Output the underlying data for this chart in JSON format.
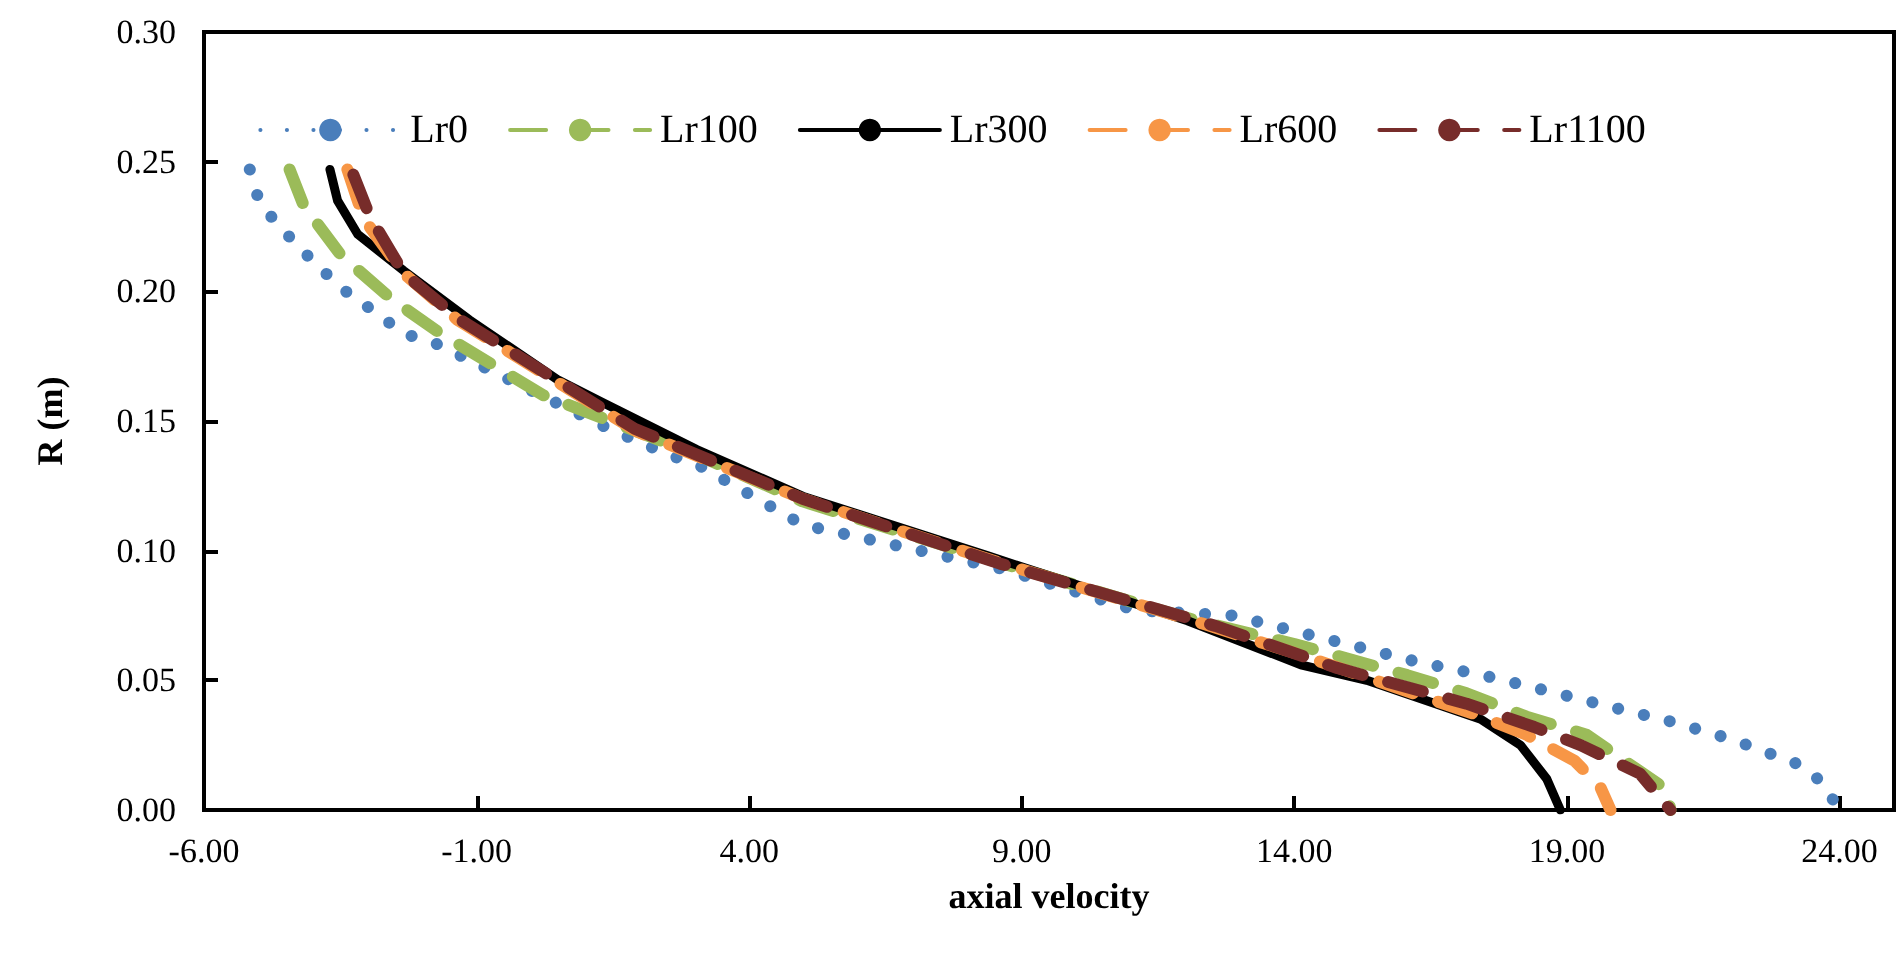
{
  "chart_data": {
    "type": "line",
    "xlabel": "axial velocity",
    "ylabel": "R (m)",
    "xlim": [
      -6,
      25
    ],
    "ylim": [
      0,
      0.3
    ],
    "xticks": [
      {
        "value": -6,
        "label": "-6.00"
      },
      {
        "value": -1,
        "label": "-1.00"
      },
      {
        "value": 4,
        "label": "4.00"
      },
      {
        "value": 9,
        "label": "9.00"
      },
      {
        "value": 14,
        "label": "14.00"
      },
      {
        "value": 19,
        "label": "19.00"
      },
      {
        "value": 24,
        "label": "24.00"
      }
    ],
    "yticks": [
      {
        "value": 0,
        "label": "0.00"
      },
      {
        "value": 0.05,
        "label": "0.05"
      },
      {
        "value": 0.1,
        "label": "0.10"
      },
      {
        "value": 0.15,
        "label": "0.15"
      },
      {
        "value": 0.2,
        "label": "0.20"
      },
      {
        "value": 0.25,
        "label": "0.25"
      },
      {
        "value": 0.3,
        "label": "0.30"
      }
    ],
    "grid": false,
    "legend": "top",
    "marker": "none",
    "series": [
      {
        "name": "Lr0",
        "color": "#4a7ebb",
        "line_style": "dotted",
        "x": [
          -5.16,
          -4.98,
          -4.61,
          -4.21,
          -3.77,
          -3.29,
          -2.78,
          -2.38,
          -1.76,
          1.43,
          1.98,
          2.53,
          3.07,
          4.98,
          8.64,
          11.09,
          12.88,
          14.0,
          15.15,
          16.28,
          17.45,
          18.63,
          19.76,
          20.93,
          22.06,
          23.2,
          23.67,
          23.97
        ],
        "values": [
          0.247,
          0.234,
          0.225,
          0.216,
          0.207,
          0.198,
          0.191,
          0.184,
          0.18,
          0.147,
          0.142,
          0.137,
          0.133,
          0.11,
          0.093,
          0.077,
          0.075,
          0.069,
          0.063,
          0.057,
          0.052,
          0.046,
          0.04,
          0.034,
          0.027,
          0.018,
          0.011,
          0.001
        ]
      },
      {
        "name": "Lr100",
        "color": "#9bbb59",
        "line_style": "dashed",
        "x": [
          -4.43,
          -4.17,
          -3.49,
          -2.56,
          -1.68,
          0.22,
          3.04,
          4.98,
          8.5,
          12.2,
          14.0,
          16.07,
          17.16,
          18.26,
          19.36,
          20.82,
          20.9
        ],
        "values": [
          0.247,
          0.233,
          0.214,
          0.197,
          0.184,
          0.16,
          0.137,
          0.119,
          0.096,
          0.073,
          0.064,
          0.052,
          0.045,
          0.036,
          0.029,
          0.008,
          0
        ]
      },
      {
        "name": "Lr300",
        "color": "#000000",
        "line_style": "solid",
        "x": [
          -3.69,
          -3.55,
          -3.18,
          -2.34,
          -1.13,
          0.48,
          1.32,
          3.04,
          4.98,
          8.38,
          12.04,
          14.12,
          15.33,
          17.42,
          18.15,
          18.63,
          18.88
        ],
        "values": [
          0.247,
          0.235,
          0.222,
          0.208,
          0.189,
          0.166,
          0.157,
          0.139,
          0.121,
          0.098,
          0.073,
          0.056,
          0.05,
          0.035,
          0.025,
          0.012,
          0
        ]
      },
      {
        "name": "Lr600",
        "color": "#f79646",
        "line_style": "dashed",
        "x": [
          -3.37,
          -3.07,
          -2.34,
          -1.35,
          1.94,
          4.98,
          8.64,
          12.3,
          14.23,
          17.3,
          18.26,
          19.14,
          19.61,
          19.8
        ],
        "values": [
          0.247,
          0.228,
          0.207,
          0.189,
          0.146,
          0.12,
          0.095,
          0.072,
          0.059,
          0.037,
          0.029,
          0.019,
          0.009,
          0
        ]
      },
      {
        "name": "Lr1100",
        "color": "#772c2a",
        "line_style": "dashed",
        "x": [
          -3.26,
          -2.96,
          -2.34,
          -1.3,
          1.9,
          4.98,
          8.6,
          12.55,
          14.75,
          17.16,
          18.4,
          19.25,
          20.34,
          20.9
        ],
        "values": [
          0.245,
          0.229,
          0.207,
          0.189,
          0.147,
          0.12,
          0.095,
          0.071,
          0.055,
          0.041,
          0.032,
          0.025,
          0.014,
          0
        ]
      }
    ]
  }
}
